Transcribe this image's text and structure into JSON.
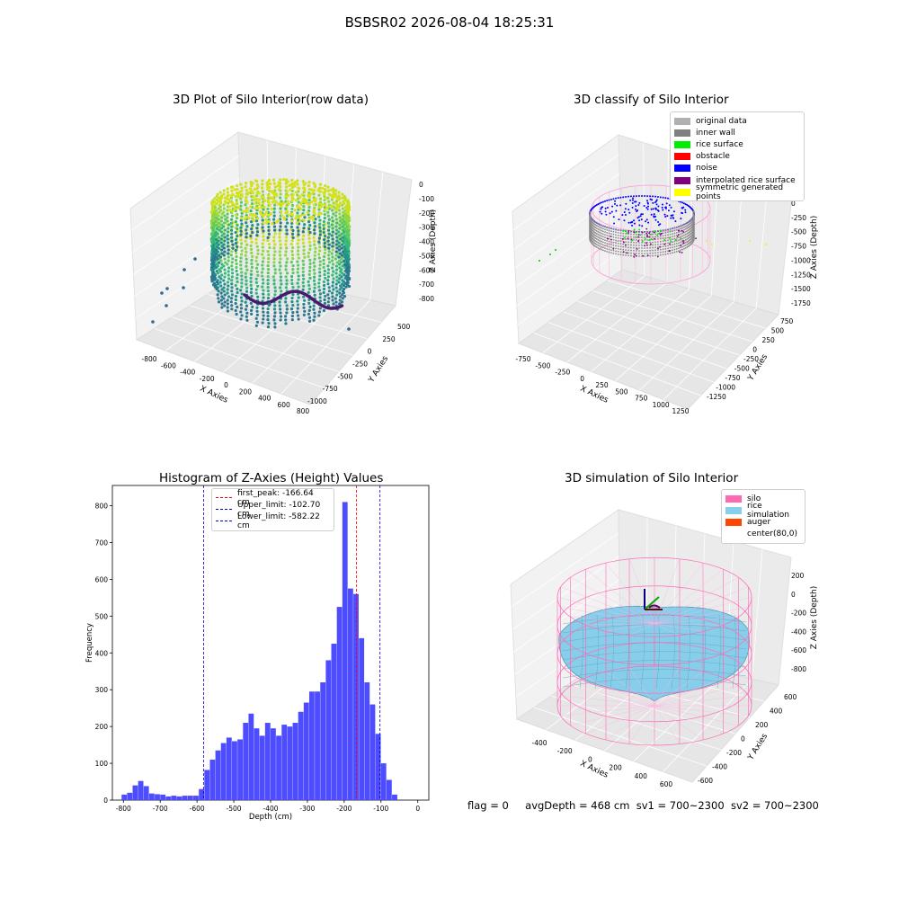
{
  "figure": {
    "suptitle": "BSBSR02 2026-08-04 18:25:31"
  },
  "panel_raw": {
    "title": "3D Plot of Silo Interior(row data)",
    "xlabel": "X Axies",
    "ylabel": "Y Axies",
    "zlabel": "Z Axies (Depth)",
    "xticks": [
      "-800",
      "-600",
      "-400",
      "-200",
      "0",
      "200",
      "400",
      "600",
      "800"
    ],
    "yticks": [
      "500",
      "250",
      "0",
      "-250",
      "-500",
      "-750",
      "-1000"
    ],
    "zticks": [
      "0",
      "-100",
      "-200",
      "-300",
      "-400",
      "-500",
      "-600",
      "-700",
      "-800"
    ]
  },
  "panel_classify": {
    "title": "3D classify of Silo Interior",
    "xlabel": "X Axies",
    "ylabel": "Y Axies",
    "zlabel": "Z Axies (Depth)",
    "xticks": [
      "-750",
      "-500",
      "-250",
      "0",
      "250",
      "500",
      "750",
      "1000",
      "1250"
    ],
    "yticks": [
      "750",
      "500",
      "250",
      "0",
      "-250",
      "-500",
      "-750",
      "-1000",
      "-1250"
    ],
    "zticks": [
      "0",
      "-250",
      "-500",
      "-750",
      "-1000",
      "-1250",
      "-1500",
      "-1750"
    ],
    "legend": [
      {
        "label": "original data",
        "color": "#b0b0b0"
      },
      {
        "label": "inner wall",
        "color": "#808080"
      },
      {
        "label": "rice surface",
        "color": "#00ee00"
      },
      {
        "label": "obstacle",
        "color": "#ff0000"
      },
      {
        "label": "noise",
        "color": "#0000ff"
      },
      {
        "label": "interpolated rice surface",
        "color": "#800080"
      },
      {
        "label": "symmetric generated points",
        "color": "#ffff00"
      }
    ]
  },
  "panel_sim": {
    "title": "3D simulation of Silo Interior",
    "xlabel": "X Axies",
    "ylabel": "Y Axies",
    "zlabel": "Z Axies (Depth)",
    "xticks": [
      "-400",
      "-200",
      "0",
      "200",
      "400",
      "600"
    ],
    "yticks": [
      "600",
      "400",
      "200",
      "0",
      "-200",
      "-400",
      "-600"
    ],
    "zticks": [
      "200",
      "0",
      "-200",
      "-400",
      "-600",
      "-800"
    ],
    "legend": [
      {
        "label": "silo",
        "color": "#ff69b4"
      },
      {
        "label": "rice simulation",
        "color": "#87ceeb"
      },
      {
        "label": "auger",
        "color": "#ff4500"
      },
      {
        "label": "center(80,0)",
        "color": "#ffffff"
      }
    ]
  },
  "chart_data": {
    "type": "bar",
    "title": "Histogram of Z-Axies (Height) Values",
    "xlabel": "Depth (cm)",
    "ylabel": "Frequency",
    "xlim": [
      -830,
      30
    ],
    "ylim": [
      0,
      855
    ],
    "xticks": [
      -800,
      -700,
      -600,
      -500,
      -400,
      -300,
      -200,
      -100,
      0
    ],
    "yticks": [
      0,
      100,
      200,
      300,
      400,
      500,
      600,
      700,
      800
    ],
    "bin_start": -805,
    "bin_width": 15,
    "values": [
      15,
      20,
      40,
      52,
      38,
      18,
      16,
      15,
      10,
      12,
      10,
      12,
      12,
      12,
      30,
      82,
      110,
      135,
      155,
      170,
      160,
      165,
      210,
      235,
      195,
      175,
      210,
      195,
      175,
      205,
      200,
      210,
      240,
      265,
      295,
      295,
      320,
      380,
      425,
      525,
      810,
      575,
      560,
      440,
      320,
      260,
      180,
      100,
      55,
      15
    ],
    "bar_color": "#4d4dff",
    "vlines": [
      {
        "label": "first_peak: -166.64 cm",
        "x": -166.64,
        "color": "#ff0000"
      },
      {
        "label": "Upper_limit: -102.70 cm",
        "x": -102.7,
        "color": "#0000cc"
      },
      {
        "label": "Lower_limit: -582.22 cm",
        "x": -582.22,
        "color": "#0000cc"
      }
    ]
  },
  "footer": {
    "flag": "flag = 0",
    "avg": "avgDepth = 468 cm",
    "sv1": "sv1 = 700~2300",
    "sv2": "sv2 = 700~2300"
  }
}
